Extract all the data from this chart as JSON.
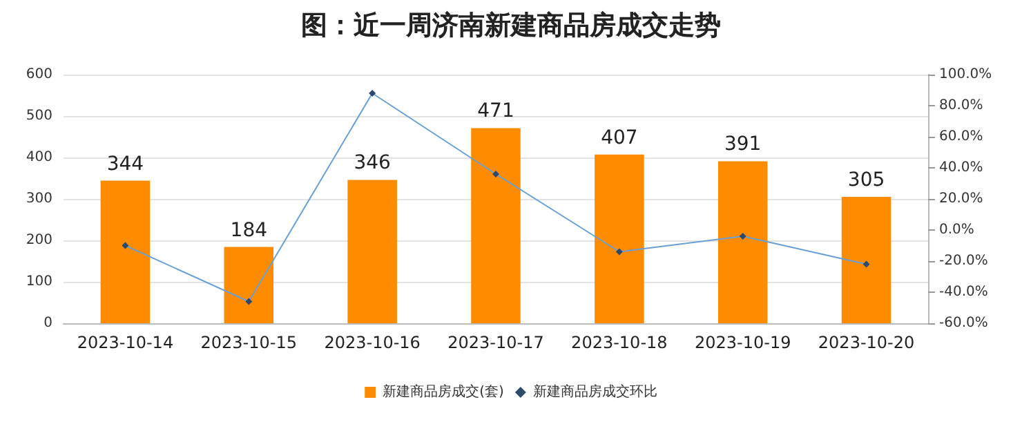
{
  "chart_data": {
    "type": "bar",
    "title": "图：近一周济南新建商品房成交走势",
    "categories": [
      "2023-10-14",
      "2023-10-15",
      "2023-10-16",
      "2023-10-17",
      "2023-10-18",
      "2023-10-19",
      "2023-10-20"
    ],
    "series": [
      {
        "name": "新建商品房成交(套)",
        "color": "#ff8c00",
        "values": [
          344,
          184,
          346,
          471,
          407,
          391,
          305
        ],
        "value_labels": [
          "344",
          "184",
          "346",
          "471",
          "407",
          "391",
          "305"
        ]
      },
      {
        "name": "新建商品房成交环比",
        "type": "line",
        "axis": "y2",
        "color": "#6a9fd4",
        "marker": "diamond",
        "values": [
          -10,
          -46,
          88,
          36,
          -14,
          -4,
          -22
        ]
      }
    ],
    "ylim": [
      0,
      600
    ],
    "yticks": [
      0,
      100,
      200,
      300,
      400,
      500,
      600
    ],
    "y2lim": [
      -60,
      100
    ],
    "y2ticks": [
      {
        "value": -60,
        "label": "-60.0%"
      },
      {
        "value": -40,
        "label": "-40.0%"
      },
      {
        "value": -20,
        "label": "-20.0%"
      },
      {
        "value": 0,
        "label": "0.0%"
      },
      {
        "value": 20,
        "label": "20.0%"
      },
      {
        "value": 40,
        "label": "40.0%"
      },
      {
        "value": 60,
        "label": "60.0%"
      },
      {
        "value": 80,
        "label": "80.0%"
      },
      {
        "value": 100,
        "label": "100.0%"
      }
    ],
    "grid": "y",
    "legend": "bottom"
  }
}
